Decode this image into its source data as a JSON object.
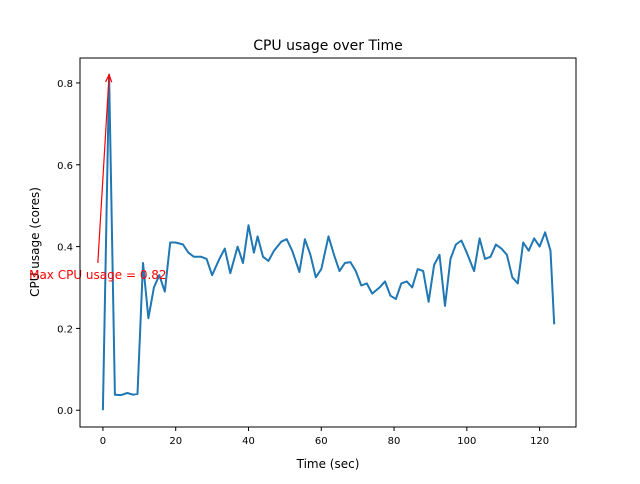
{
  "chart_data": {
    "type": "line",
    "title": "CPU usage over Time",
    "xlabel": "Time (sec)",
    "ylabel": "CPU usage (cores)",
    "xlim": [
      -6.3,
      130
    ],
    "ylim": [
      -0.041,
      0.861
    ],
    "xticks": [
      0,
      20,
      40,
      60,
      80,
      100,
      120
    ],
    "xtick_labels": [
      "0",
      "20",
      "40",
      "60",
      "80",
      "100",
      "120"
    ],
    "yticks": [
      0.0,
      0.2,
      0.4,
      0.6,
      0.8
    ],
    "ytick_labels": [
      "0.0",
      "0.2",
      "0.4",
      "0.6",
      "0.8"
    ],
    "grid": false,
    "series": [
      {
        "name": "CPU usage",
        "color": "#1f77b4",
        "x": [
          0,
          1.7,
          3.3,
          5,
          6.7,
          8.3,
          9.5,
          11,
          12.5,
          14,
          15.5,
          17,
          18.5,
          20,
          22,
          23.5,
          25,
          27,
          28.5,
          30,
          32,
          33.5,
          35,
          37,
          38.5,
          40,
          41.5,
          42.5,
          44,
          45.5,
          47,
          49,
          50.5,
          52,
          54,
          55.5,
          57,
          58.5,
          60,
          62,
          63.5,
          65,
          66.5,
          68,
          69.5,
          71,
          72.5,
          74,
          76,
          77.5,
          79,
          80.5,
          82,
          83.5,
          85,
          86.5,
          88,
          89.5,
          91,
          92.5,
          94,
          95.5,
          97,
          98.5,
          100,
          102,
          103.5,
          105,
          106.5,
          108,
          109.5,
          111,
          112.5,
          114,
          115.5,
          117,
          118.5,
          120,
          121.5,
          123,
          124
        ],
        "y": [
          0.0,
          0.82,
          0.038,
          0.037,
          0.042,
          0.038,
          0.04,
          0.36,
          0.225,
          0.3,
          0.33,
          0.29,
          0.41,
          0.41,
          0.405,
          0.385,
          0.375,
          0.375,
          0.37,
          0.33,
          0.37,
          0.395,
          0.335,
          0.4,
          0.36,
          0.452,
          0.385,
          0.425,
          0.375,
          0.365,
          0.39,
          0.412,
          0.418,
          0.39,
          0.338,
          0.418,
          0.38,
          0.325,
          0.345,
          0.425,
          0.38,
          0.34,
          0.36,
          0.362,
          0.34,
          0.305,
          0.31,
          0.285,
          0.3,
          0.315,
          0.28,
          0.272,
          0.31,
          0.315,
          0.3,
          0.345,
          0.34,
          0.265,
          0.355,
          0.38,
          0.255,
          0.37,
          0.405,
          0.415,
          0.385,
          0.34,
          0.42,
          0.37,
          0.375,
          0.405,
          0.395,
          0.38,
          0.325,
          0.31,
          0.41,
          0.39,
          0.42,
          0.4,
          0.435,
          0.39,
          0.21
        ]
      }
    ],
    "annotation": {
      "text": "Max CPU usage = 0.82",
      "color": "#ff0000",
      "xy": [
        1.7,
        0.82
      ],
      "xytext": [
        -1.4,
        0.36
      ],
      "text_pos": [
        -1.4,
        0.33
      ]
    }
  }
}
